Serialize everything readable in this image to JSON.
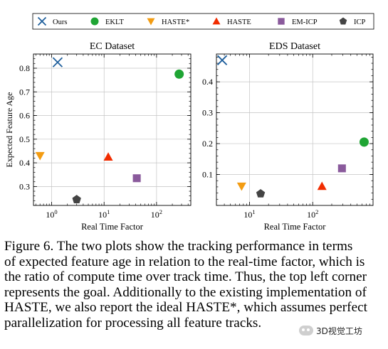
{
  "legend": [
    {
      "label": "Ours",
      "marker": "x",
      "color": "#1f5f9c"
    },
    {
      "label": "EKLT",
      "marker": "circle",
      "color": "#1fa534"
    },
    {
      "label": "HASTE*",
      "marker": "triangle-down",
      "color": "#f39c12"
    },
    {
      "label": "HASTE",
      "marker": "triangle-up",
      "color": "#f12c00"
    },
    {
      "label": "EM-ICP",
      "marker": "square",
      "color": "#8a5a9c"
    },
    {
      "label": "ICP",
      "marker": "pentagon",
      "color": "#444444"
    }
  ],
  "chart_data": [
    {
      "type": "scatter",
      "title": "EC Dataset",
      "xlabel": "Real Time Factor",
      "ylabel": "Expected Feature Age",
      "xscale": "log",
      "xlim": [
        0.45,
        450
      ],
      "ylim": [
        0.22,
        0.86
      ],
      "xticks": [
        {
          "value": 1,
          "label": "10",
          "sup": "0"
        },
        {
          "value": 10,
          "label": "10",
          "sup": "1"
        },
        {
          "value": 100,
          "label": "10",
          "sup": "2"
        }
      ],
      "yticks": [
        {
          "value": 0.3,
          "label": "0.3"
        },
        {
          "value": 0.4,
          "label": "0.4"
        },
        {
          "value": 0.5,
          "label": "0.5"
        },
        {
          "value": 0.6,
          "label": "0.6"
        },
        {
          "value": 0.7,
          "label": "0.7"
        },
        {
          "value": 0.8,
          "label": "0.8"
        }
      ],
      "grid": true,
      "points": [
        {
          "series": "Ours",
          "x": 1.3,
          "y": 0.825
        },
        {
          "series": "EKLT",
          "x": 270,
          "y": 0.775
        },
        {
          "series": "HASTE*",
          "x": 0.6,
          "y": 0.43
        },
        {
          "series": "HASTE",
          "x": 12,
          "y": 0.425
        },
        {
          "series": "EM-ICP",
          "x": 42,
          "y": 0.335
        },
        {
          "series": "ICP",
          "x": 3,
          "y": 0.245
        }
      ]
    },
    {
      "type": "scatter",
      "title": "EDS Dataset",
      "xlabel": "Real Time Factor",
      "ylabel": "",
      "xscale": "log",
      "xlim": [
        3,
        900
      ],
      "ylim": [
        0.0,
        0.49
      ],
      "xticks": [
        {
          "value": 10,
          "label": "10",
          "sup": "1"
        },
        {
          "value": 100,
          "label": "10",
          "sup": "2"
        }
      ],
      "yticks": [
        {
          "value": 0.1,
          "label": "0.1"
        },
        {
          "value": 0.2,
          "label": "0.2"
        },
        {
          "value": 0.3,
          "label": "0.3"
        },
        {
          "value": 0.4,
          "label": "0.4"
        }
      ],
      "grid": true,
      "points": [
        {
          "series": "Ours",
          "x": 3.7,
          "y": 0.47
        },
        {
          "series": "EKLT",
          "x": 650,
          "y": 0.205
        },
        {
          "series": "HASTE*",
          "x": 7.5,
          "y": 0.062
        },
        {
          "series": "HASTE",
          "x": 140,
          "y": 0.062
        },
        {
          "series": "EM-ICP",
          "x": 290,
          "y": 0.12
        },
        {
          "series": "ICP",
          "x": 15,
          "y": 0.038
        }
      ]
    }
  ],
  "caption": {
    "lines": [
      "Figure 6.  The two plots show the tracking performance in terms",
      "of expected feature age in relation to the real-time factor, which is",
      "the ratio of compute time over track time. Thus, the top left corner",
      "represents the goal. Additionally to the existing implementation of",
      "HASTE, we also report the ideal HASTE*, which assumes perfect",
      "parallelization for processing all feature tracks."
    ]
  },
  "watermark": {
    "text": "3D视觉工坊"
  }
}
